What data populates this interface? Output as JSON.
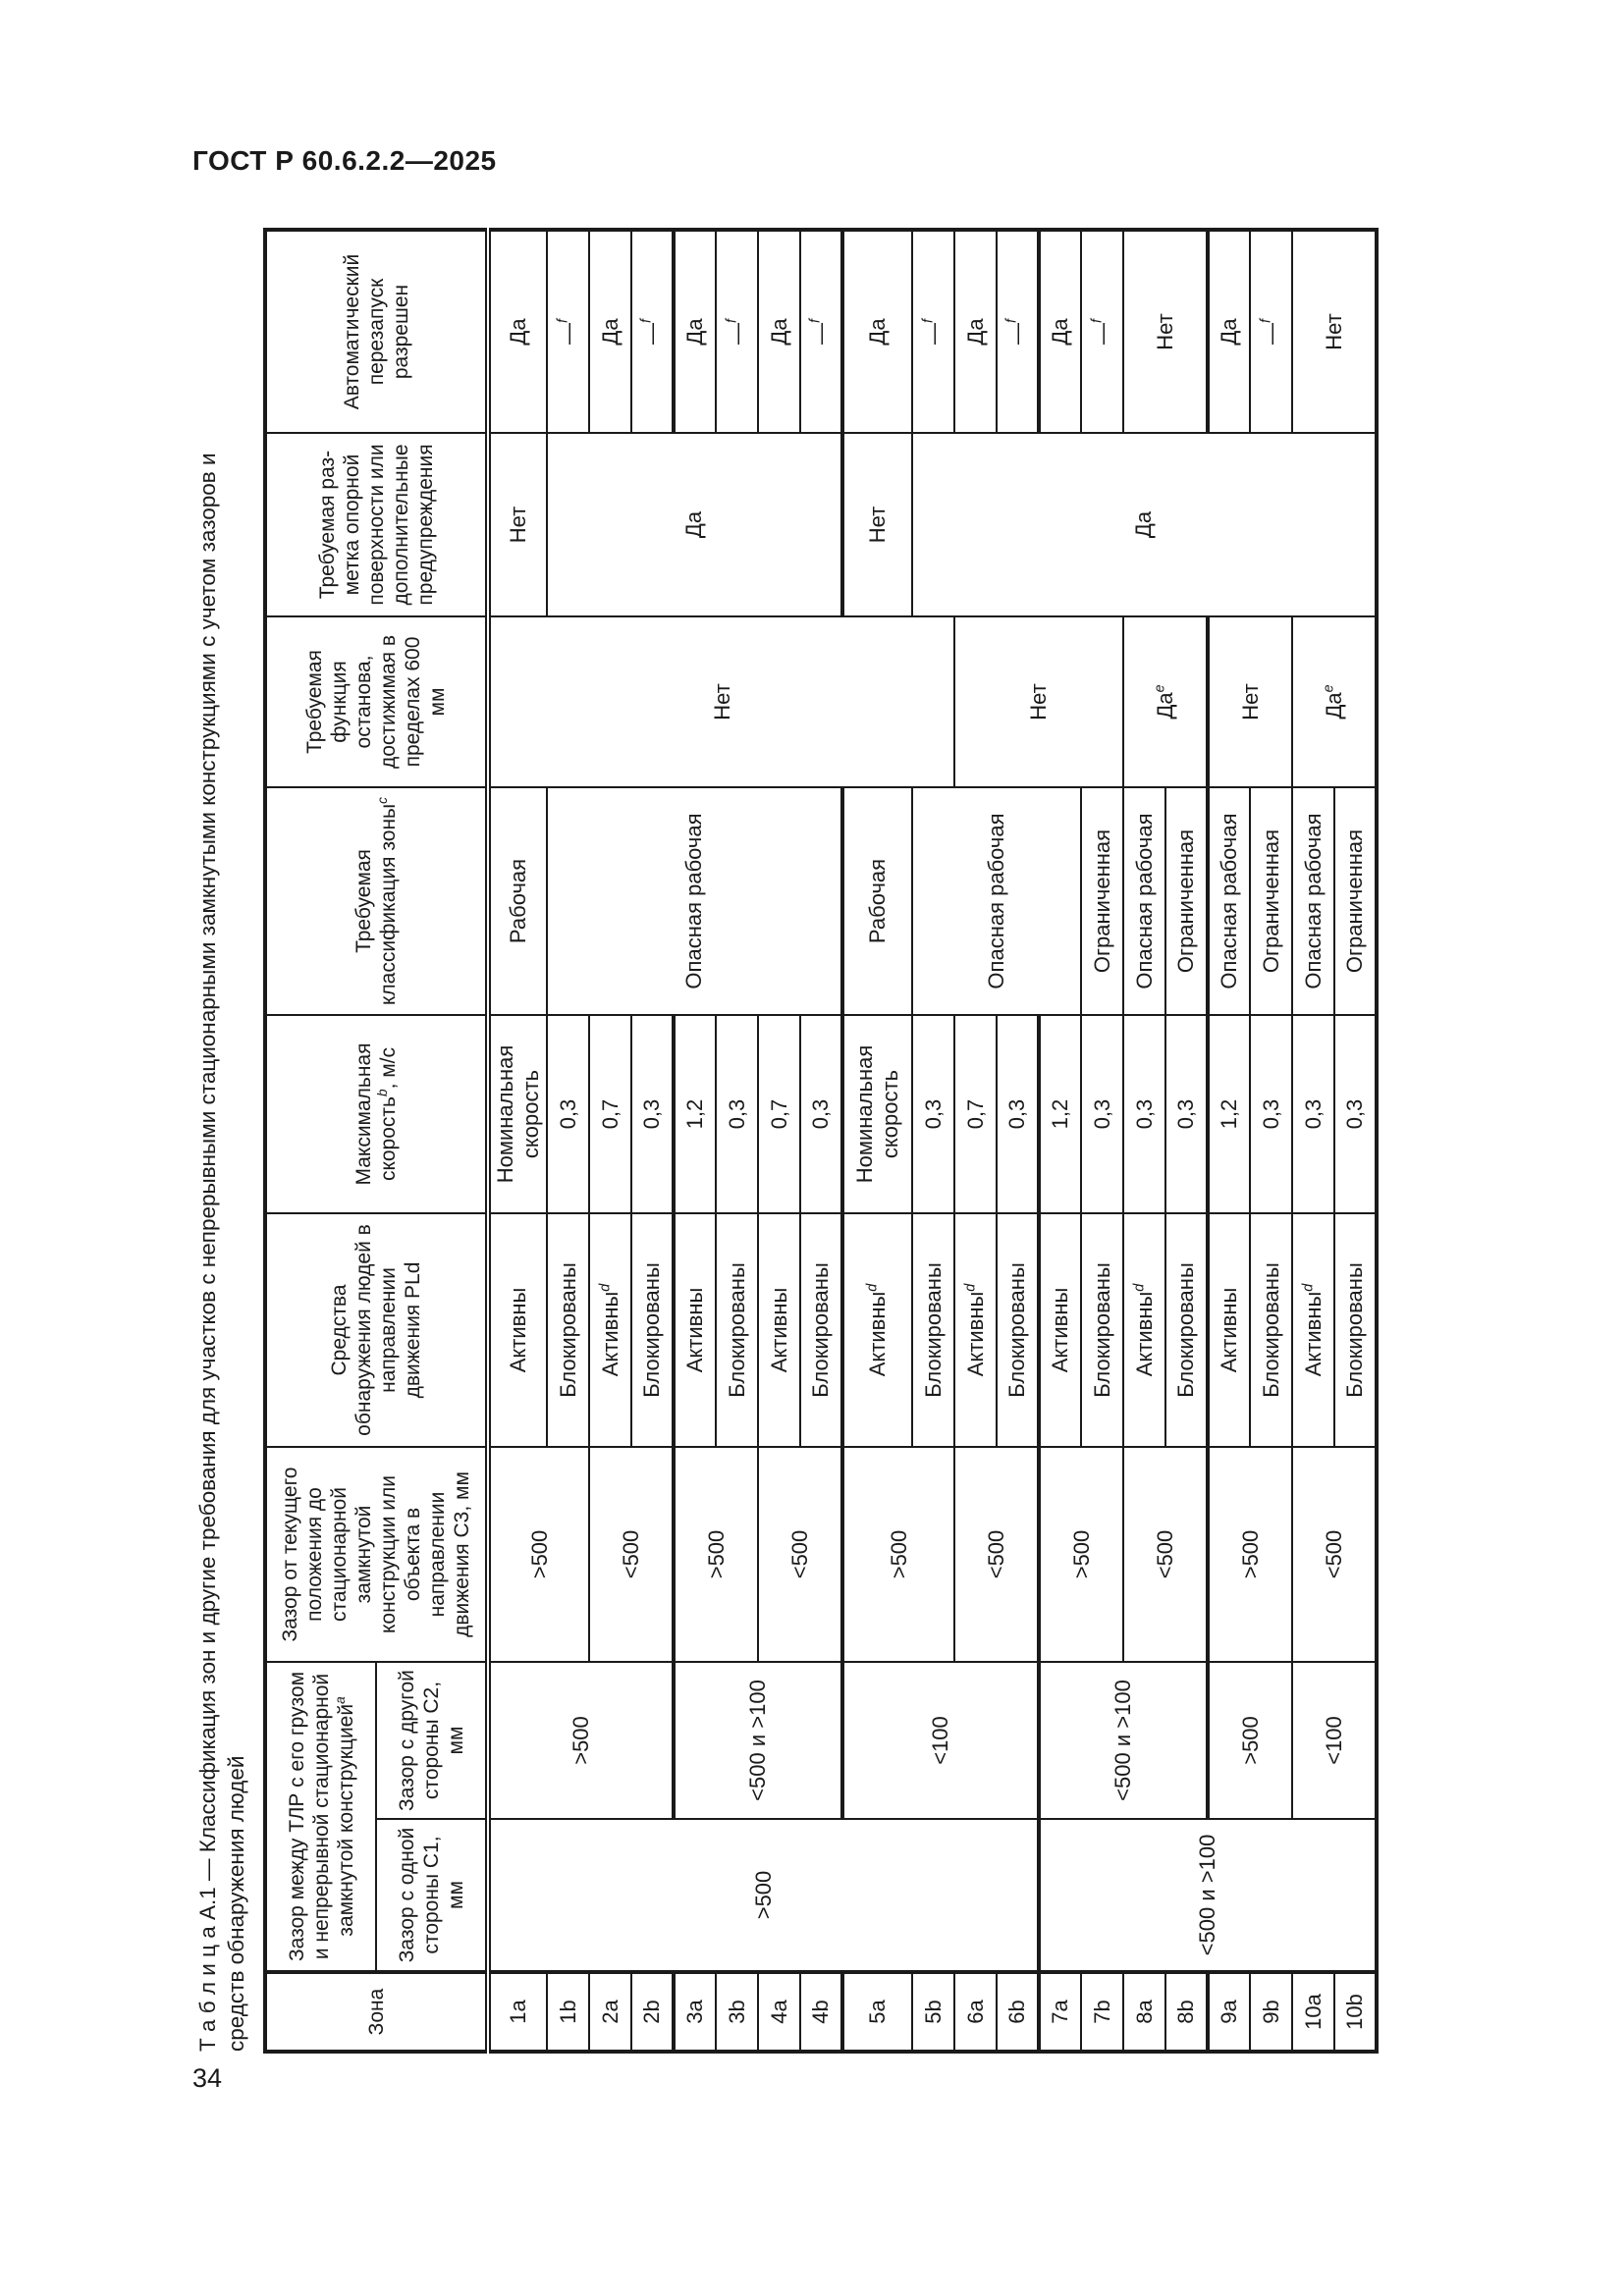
{
  "page": {
    "header": "ГОСТ Р 60.6.2.2—2025",
    "page_number": "34"
  },
  "table": {
    "title_line1": "Т а б л и ц а  А.1 — Классификация зон и другие требования для участков с непрерывными стационарными замкнутыми конструкциями с учетом зазоров и",
    "title_line2": "средств обнаружения людей",
    "zone_label": "Зона",
    "group_header": {
      "label": "Зазор между ТЛР с его грузом и непрерывной стационарной замкнутой конструкцией",
      "sup": "a"
    },
    "zones": [
      "1a",
      "1b",
      "2a",
      "2b",
      "3a",
      "3b",
      "4a",
      "4b",
      "5a",
      "5b",
      "6a",
      "6b",
      "7a",
      "7b",
      "8a",
      "8b",
      "9a",
      "9b",
      "10a",
      "10b"
    ],
    "columns": [
      {
        "id": "c1",
        "label": "Зазор с одной стороны С1, мм",
        "cells": [
          {
            "t": ">500",
            "r": 12
          },
          {
            "t": "<500 и >100",
            "r": 8
          }
        ]
      },
      {
        "id": "c2",
        "label": "Зазор с другой стороны С2, мм",
        "cells": [
          {
            "t": ">500",
            "r": 4
          },
          {
            "t": "<500 и >100",
            "r": 4
          },
          {
            "t": "<100",
            "r": 4
          },
          {
            "t": "<500 и >100",
            "r": 4
          },
          {
            "t": ">500",
            "r": 2
          },
          {
            "t": "<100",
            "r": 2
          }
        ]
      },
      {
        "id": "c3",
        "label": "Зазор от текущего положения до стационарной замкнутой конструкции или объекта в направлении движения С3, мм",
        "cells": [
          {
            "t": ">500",
            "r": 2
          },
          {
            "t": "<500",
            "r": 2
          },
          {
            "t": ">500",
            "r": 2
          },
          {
            "t": "<500",
            "r": 2
          },
          {
            "t": ">500",
            "r": 2
          },
          {
            "t": "<500",
            "r": 2
          },
          {
            "t": ">500",
            "r": 2
          },
          {
            "t": "<500",
            "r": 2
          },
          {
            "t": ">500",
            "r": 2
          },
          {
            "t": "<500",
            "r": 2
          }
        ]
      },
      {
        "id": "detection",
        "label": "Средства обнаружения людей в направлении движения PLd",
        "cells": [
          {
            "t": "Активны"
          },
          {
            "t": "Блокированы"
          },
          {
            "t": "Активны",
            "s": "d"
          },
          {
            "t": "Блокированы"
          },
          {
            "t": "Активны"
          },
          {
            "t": "Блокированы"
          },
          {
            "t": "Активны"
          },
          {
            "t": "Блокированы"
          },
          {
            "t": "Активны",
            "s": "d"
          },
          {
            "t": "Блокированы"
          },
          {
            "t": "Активны",
            "s": "d"
          },
          {
            "t": "Блокированы"
          },
          {
            "t": "Активны"
          },
          {
            "t": "Блокированы"
          },
          {
            "t": "Активны",
            "s": "d"
          },
          {
            "t": "Блокированы"
          },
          {
            "t": "Активны"
          },
          {
            "t": "Блокированы"
          },
          {
            "t": "Активны",
            "s": "d"
          },
          {
            "t": "Блокированы"
          }
        ]
      },
      {
        "id": "speed",
        "label": "Максимальная скорость",
        "label_sup": "b",
        "label_after": ", м/с",
        "cells": [
          {
            "t": "Номинальная скорость"
          },
          {
            "t": "0,3"
          },
          {
            "t": "0,7"
          },
          {
            "t": "0,3"
          },
          {
            "t": "1,2"
          },
          {
            "t": "0,3"
          },
          {
            "t": "0,7"
          },
          {
            "t": "0,3"
          },
          {
            "t": "Номинальная скорость"
          },
          {
            "t": "0,3"
          },
          {
            "t": "0,7"
          },
          {
            "t": "0,3"
          },
          {
            "t": "1,2"
          },
          {
            "t": "0,3"
          },
          {
            "t": "0,3"
          },
          {
            "t": "0,3"
          },
          {
            "t": "1,2"
          },
          {
            "t": "0,3"
          },
          {
            "t": "0,3"
          },
          {
            "t": "0,3"
          }
        ]
      },
      {
        "id": "classification",
        "label": "Требуемая классификация зоны",
        "label_sup": "c",
        "cells": [
          {
            "t": "Рабочая"
          },
          {
            "t": "Опасная рабочая",
            "r": 7
          },
          {
            "t": "Рабочая"
          },
          {
            "t": "Опасная рабочая",
            "r": 4
          },
          {
            "t": "Ограниченная"
          },
          {
            "t": "Опасная рабочая"
          },
          {
            "t": "Ограниченная"
          },
          {
            "t": "Опасная рабочая"
          },
          {
            "t": "Ограниченная"
          },
          {
            "t": "Опасная рабочая"
          },
          {
            "t": "Ограниченная"
          }
        ]
      },
      {
        "id": "stop",
        "label": "Требуемая функция останова, достижимая в пределах 600 мм",
        "cells": [
          {
            "t": "Нет",
            "r": 10
          },
          {
            "t": "Нет",
            "r": 4
          },
          {
            "t": "Да",
            "s": "e",
            "r": 2
          },
          {
            "t": "Нет",
            "r": 2
          },
          {
            "t": "Да",
            "s": "e",
            "r": 2
          }
        ]
      },
      {
        "id": "marking",
        "label": "Требуемая раз-метка опорной поверхности или дополнительные предупреждения",
        "cells": [
          {
            "t": "Нет"
          },
          {
            "t": "Да",
            "r": 7
          },
          {
            "t": "Нет"
          },
          {
            "t": "Да",
            "r": 11
          }
        ]
      },
      {
        "id": "restart",
        "label": "Автоматический перезапуск разрешен",
        "cells": [
          {
            "t": "Да"
          },
          {
            "t": "—",
            "s": "f"
          },
          {
            "t": "Да"
          },
          {
            "t": "—",
            "s": "f"
          },
          {
            "t": "Да"
          },
          {
            "t": "—",
            "s": "f"
          },
          {
            "t": "Да"
          },
          {
            "t": "—",
            "s": "f"
          },
          {
            "t": "Да"
          },
          {
            "t": "—",
            "s": "f"
          },
          {
            "t": "Да"
          },
          {
            "t": "—",
            "s": "f"
          },
          {
            "t": "Да"
          },
          {
            "t": "—",
            "s": "f"
          },
          {
            "t": "Нет",
            "r": 2
          },
          {
            "t": "Да"
          },
          {
            "t": "—",
            "s": "f"
          },
          {
            "t": "Нет",
            "r": 2
          }
        ]
      }
    ]
  }
}
